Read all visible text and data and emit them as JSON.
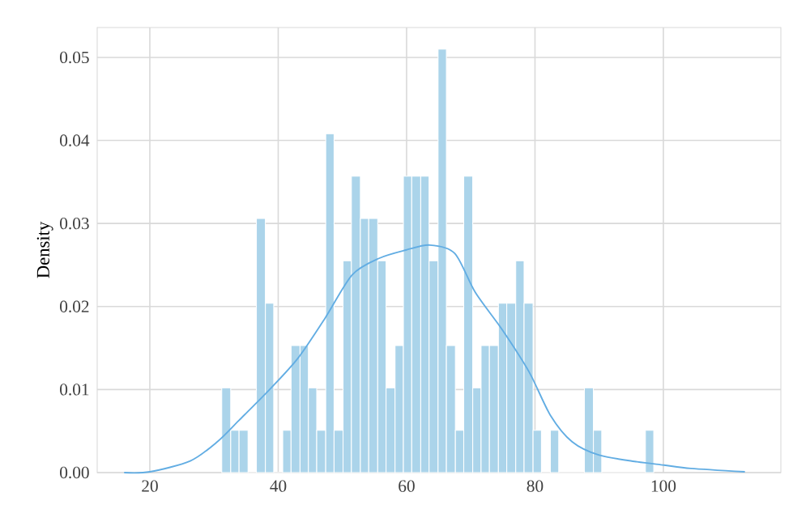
{
  "chart_data": {
    "type": "histogram",
    "ylabel": "Density",
    "xlim": [
      11.8,
      118.3
    ],
    "ylim": [
      0,
      0.0536
    ],
    "xticks": [
      20,
      40,
      60,
      80,
      100
    ],
    "yticks": [
      {
        "value": 0,
        "label": "0.00"
      },
      {
        "value": 0.01,
        "label": "0.01"
      },
      {
        "value": 0.02,
        "label": "0.02"
      },
      {
        "value": 0.03,
        "label": "0.03"
      },
      {
        "value": 0.04,
        "label": "0.04"
      },
      {
        "value": 0.05,
        "label": "0.05"
      }
    ],
    "grid": true,
    "series": [
      {
        "color": "#abd4ea",
        "bins": [
          31.2,
          32.6,
          33.9,
          35.3,
          36.6,
          38.0,
          39.3,
          40.7,
          42.0,
          43.4,
          44.7,
          46.0,
          47.4,
          48.7,
          50.1,
          51.4,
          52.8,
          54.1,
          55.5,
          56.8,
          58.2,
          59.5,
          60.8,
          62.2,
          63.5,
          64.9,
          66.2,
          67.6,
          68.9,
          70.3,
          71.6,
          72.9,
          74.3,
          75.6,
          77.0,
          78.3,
          79.7,
          81.0,
          82.4,
          83.7,
          87.7,
          89.1,
          90.4,
          97.2,
          98.5
        ],
        "values": [
          0.0102,
          0.0051,
          0.0051,
          0,
          0.0306,
          0.0204,
          0,
          0.0051,
          0.0153,
          0.0153,
          0.0102,
          0.0051,
          0.0408,
          0.0051,
          0.0255,
          0.0357,
          0.0306,
          0.0306,
          0.0255,
          0.0102,
          0.0153,
          0.0357,
          0.0357,
          0.0357,
          0.0255,
          0.051,
          0.0153,
          0.0051,
          0.0357,
          0.0102,
          0.0153,
          0.0153,
          0.0204,
          0.0204,
          0.0255,
          0.0204,
          0.0051,
          0,
          0.0051,
          0,
          0.0102,
          0.0051,
          0,
          0.0051
        ]
      },
      {
        "type": "line",
        "color": "#62ade3",
        "x": [
          16,
          20,
          26.3,
          30.5,
          33.9,
          38.9,
          43.1,
          47.3,
          51.5,
          55.7,
          59.9,
          63.6,
          67.5,
          70.7,
          74.9,
          79.1,
          82.4,
          85.8,
          90,
          95.9,
          100.1,
          104.3,
          112.7
        ],
        "values": [
          0,
          0.0001,
          0.0014,
          0.0037,
          0.0063,
          0.0102,
          0.0138,
          0.0186,
          0.0238,
          0.0258,
          0.0268,
          0.0274,
          0.0264,
          0.0217,
          0.0172,
          0.0121,
          0.0069,
          0.0037,
          0.0021,
          0.0013,
          0.0009,
          0.0005,
          0.0001
        ]
      }
    ]
  }
}
